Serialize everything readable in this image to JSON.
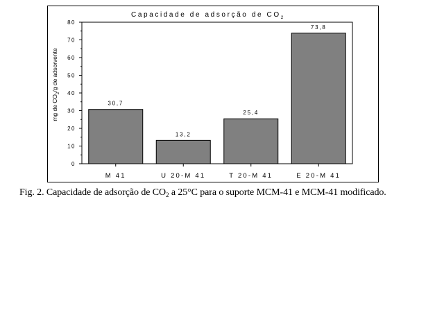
{
  "chart_data": {
    "type": "bar",
    "title": "Capacidade de adsorção de CO",
    "title_subscript": "2",
    "ylabel_pre": "mg de CO",
    "ylabel_sub": "2",
    "ylabel_post": "/g de adsorvente",
    "xlabel": "",
    "categories": [
      "M 41",
      "U 20-M 41",
      "T 20-M 41",
      "E 20-M 41"
    ],
    "values": [
      30.7,
      13.2,
      25.4,
      73.8
    ],
    "value_labels": [
      "30,7",
      "13,2",
      "25,4",
      "73,8"
    ],
    "ylim": [
      0,
      80
    ],
    "yticks": [
      "0",
      "10",
      "20",
      "30",
      "40",
      "50",
      "60",
      "70",
      "80"
    ],
    "grid": false,
    "bar_color": "#808080",
    "bar_edge_color": "#000000"
  },
  "caption": {
    "before_sub": "Fig.  2. Capacidade de adsorção de CO",
    "sub": "2",
    "after_sub": " a 25°C para o suporte MCM-41 e MCM-41 modificado."
  }
}
